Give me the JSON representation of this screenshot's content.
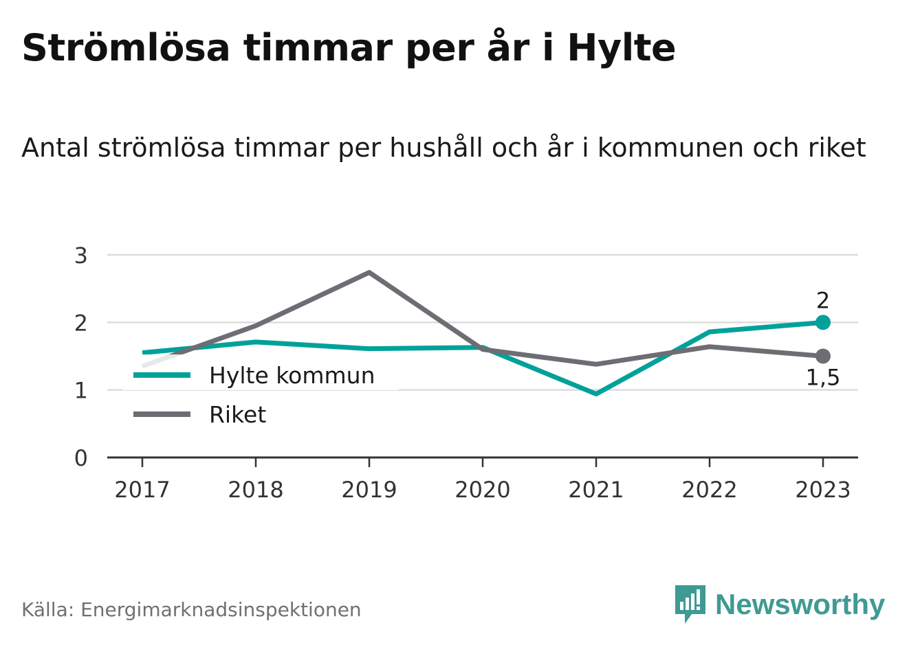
{
  "header": {
    "title": "Strömlösa timmar per år i Hylte",
    "subtitle": "Antal strömlösa timmar per hushåll och år i kommunen och riket"
  },
  "footer": {
    "source": "Källa: Energimarknadsinspektionen",
    "brand": "Newsworthy"
  },
  "colors": {
    "hylte": "#00a19a",
    "riket": "#6e6d73",
    "grid": "#dcdcdc",
    "axis": "#333333",
    "brand": "#3f9a93"
  },
  "chart_data": {
    "type": "line",
    "x": [
      "2017",
      "2018",
      "2019",
      "2020",
      "2021",
      "2022",
      "2023"
    ],
    "ylim": [
      0,
      3
    ],
    "yticks": [
      "0",
      "1",
      "2",
      "3"
    ],
    "grid": true,
    "legend": "left",
    "series": [
      {
        "name": "Hylte kommun",
        "key": "hylte",
        "values": [
          1.55,
          1.71,
          1.61,
          1.63,
          0.94,
          1.86,
          2.0
        ],
        "end_label": "2"
      },
      {
        "name": "Riket",
        "key": "riket",
        "values": [
          1.35,
          1.95,
          2.74,
          1.6,
          1.38,
          1.64,
          1.5
        ],
        "end_label": "1,5"
      }
    ]
  }
}
